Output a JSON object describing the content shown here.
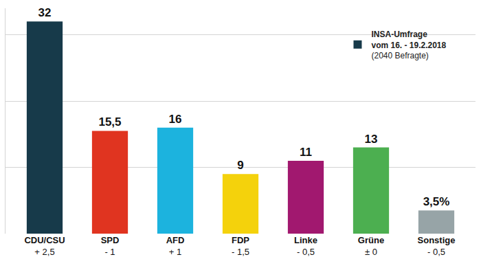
{
  "chart_data": {
    "type": "bar",
    "categories": [
      "CDU/CSU",
      "SPD",
      "AFD",
      "FDP",
      "Linke",
      "Grüne",
      "Sonstige"
    ],
    "change_labels": [
      "+ 2,5",
      "- 1",
      "+ 1",
      "- 1,5",
      "- 0,5",
      "± 0",
      "- 0,5"
    ],
    "series": [
      {
        "name": "INSA-Umfrage\nvom 16. - 19.2.2018\n(2040 Befragte)",
        "values": [
          32,
          15.5,
          16,
          9,
          11,
          13,
          3.5
        ],
        "value_labels": [
          "32",
          "15,5",
          "16",
          "9",
          "11",
          "13",
          "3,5%"
        ],
        "colors": [
          "#173a4a",
          "#e03420",
          "#1cb3de",
          "#f4d20c",
          "#a1186f",
          "#4caf50",
          "#97a4a7"
        ]
      }
    ],
    "ylim": [
      0,
      34
    ],
    "yticks": [
      0,
      10,
      20,
      30
    ],
    "grid": true,
    "tick_labels": "x",
    "data_labels": true,
    "legend": "top-right"
  }
}
